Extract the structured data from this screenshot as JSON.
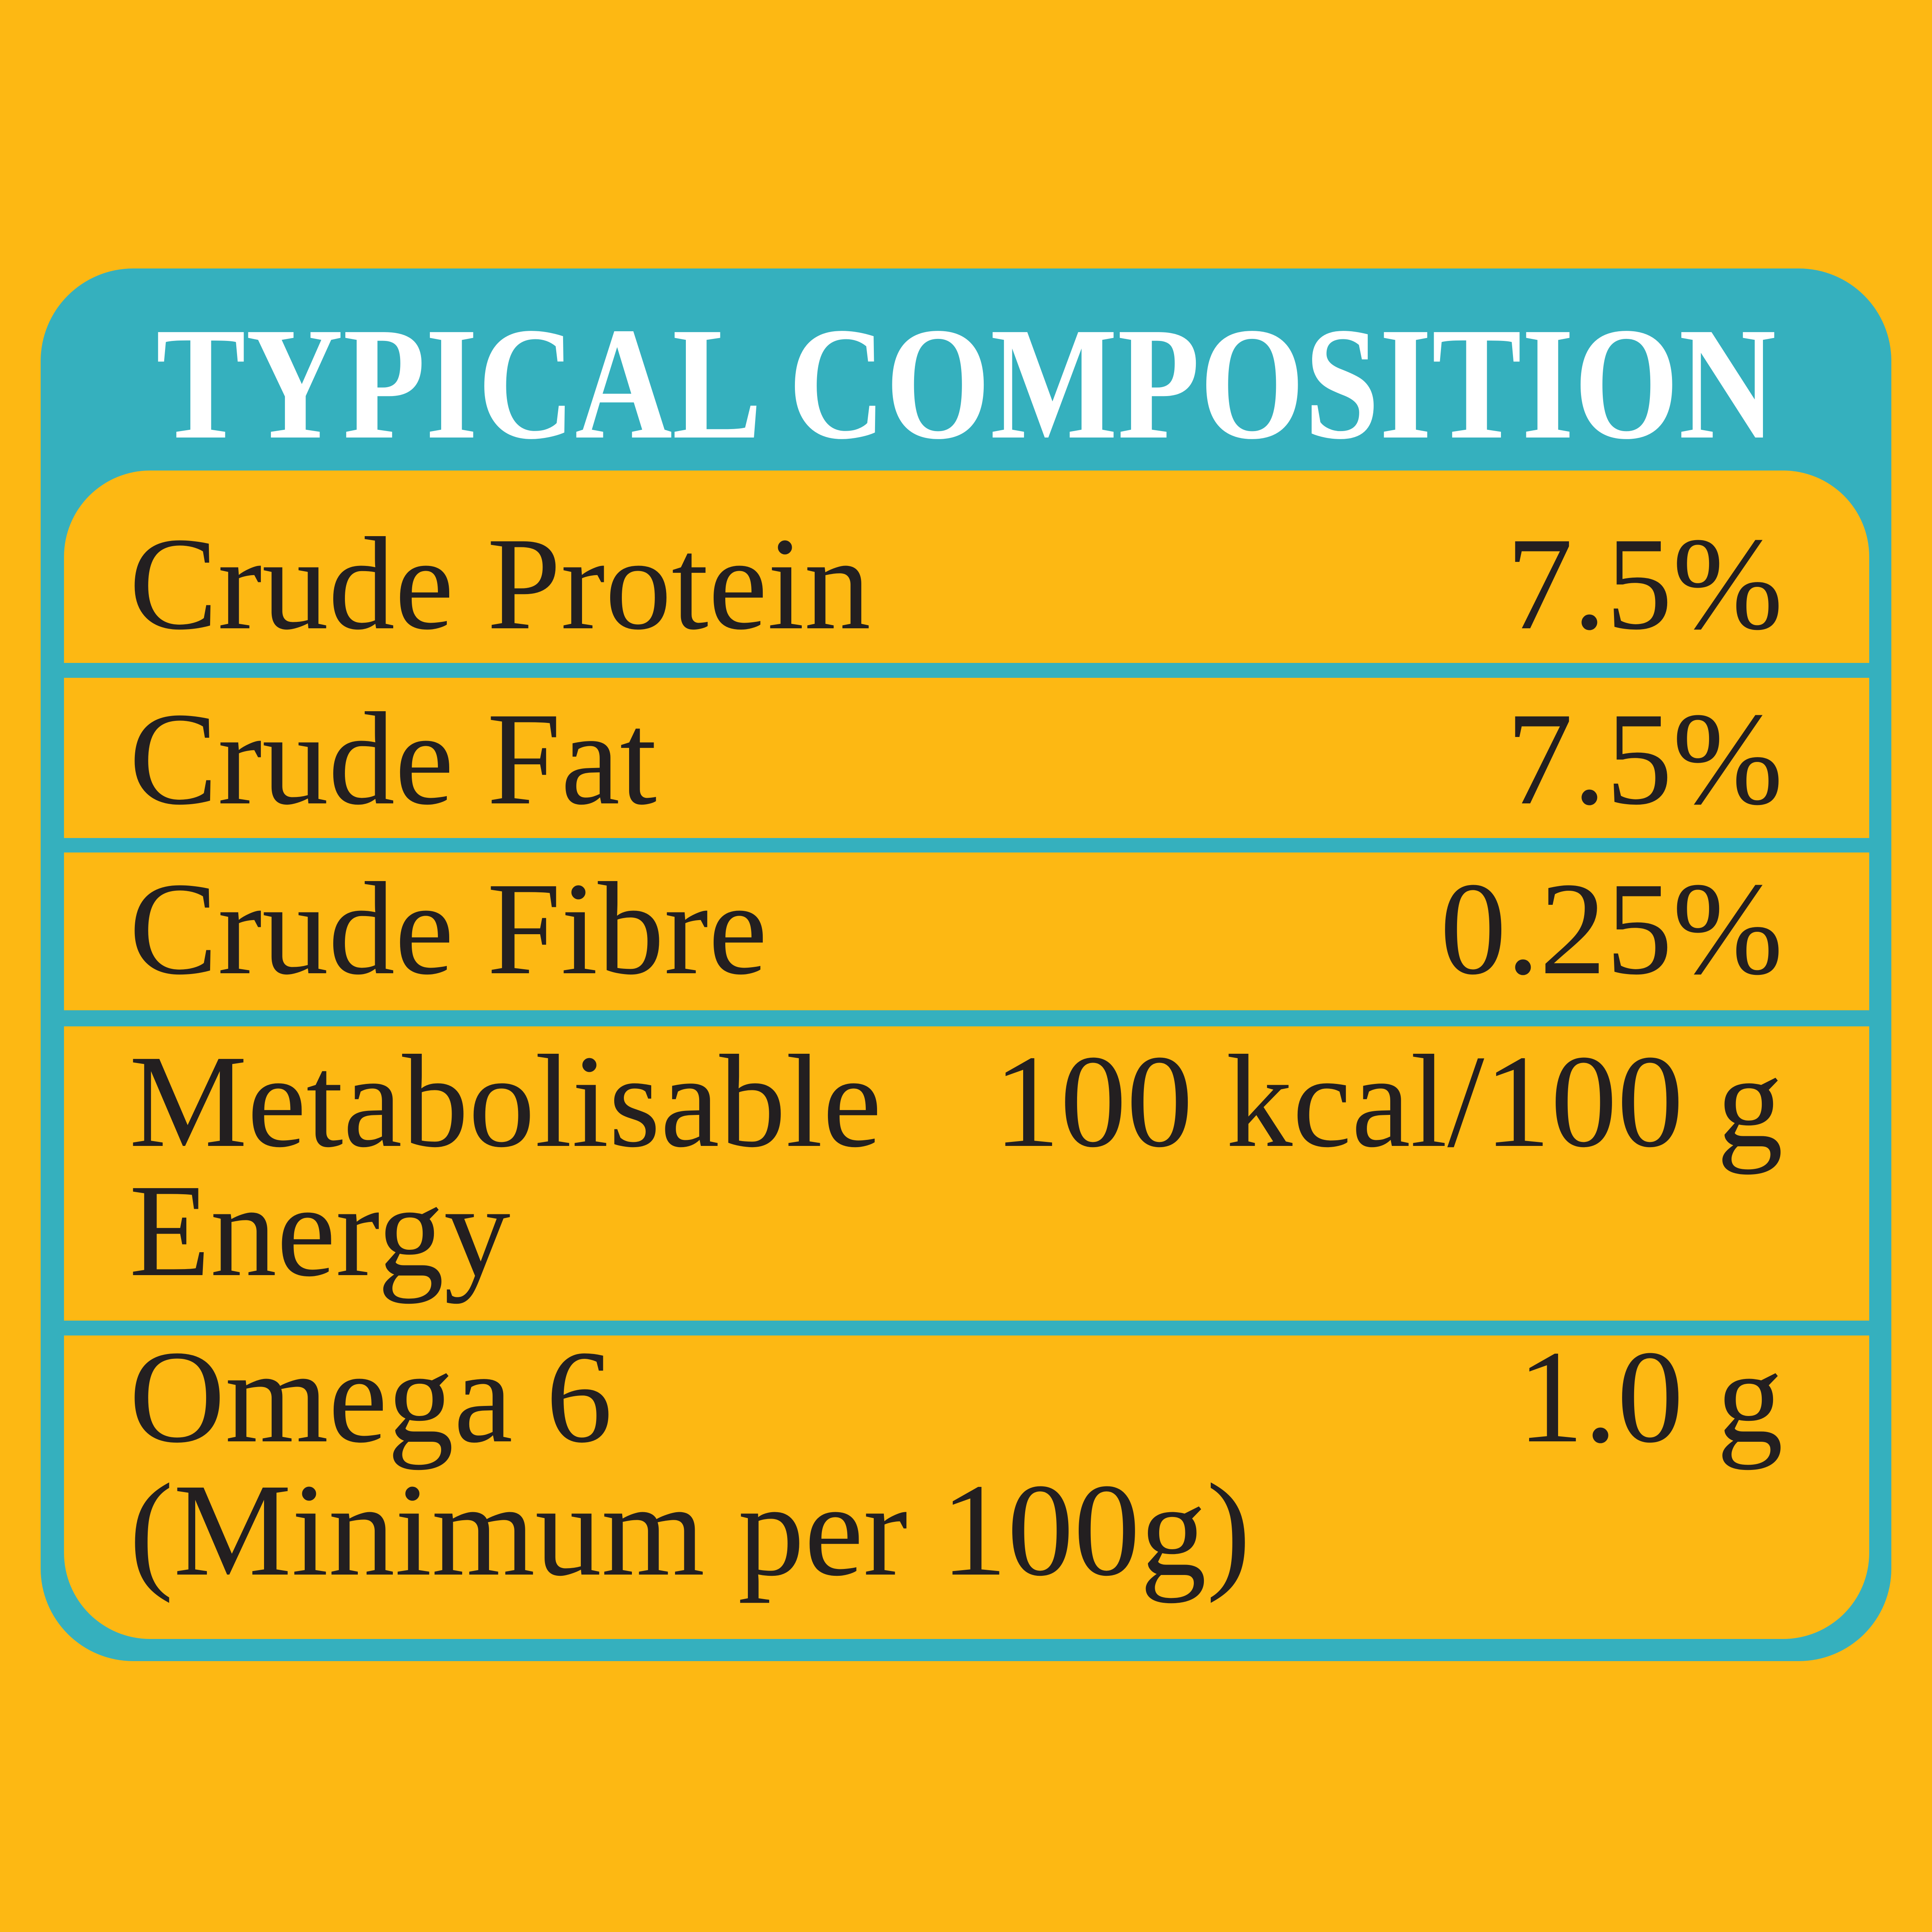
{
  "title": "TYPICAL COMPOSITION",
  "table": {
    "rows": [
      {
        "label_lines": [
          "Crude Protein"
        ],
        "value": "7.5%"
      },
      {
        "label_lines": [
          "Crude Fat"
        ],
        "value": "7.5%"
      },
      {
        "label_lines": [
          "Crude Fibre"
        ],
        "value": "0.25%"
      },
      {
        "label_lines": [
          "Metabolisable",
          "Energy"
        ],
        "value": "100 kcal/100 g"
      },
      {
        "label_lines": [
          "Omega 6",
          "(Minimum per 100g)"
        ],
        "value": "1.0 g"
      }
    ]
  }
}
